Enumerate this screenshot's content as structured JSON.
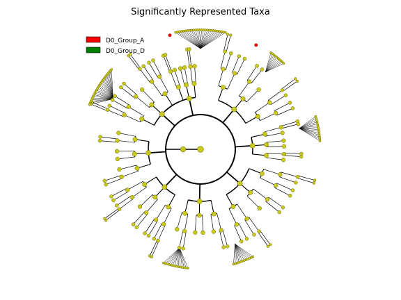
{
  "figure": {
    "title": "Significantly Represented Taxa"
  },
  "legend": {
    "items": [
      {
        "label": "D0_Group_A",
        "color": "#ff0000"
      },
      {
        "label": "D0_Group_D",
        "color": "#008000"
      }
    ]
  },
  "colors": {
    "node_fill": "#c8c81e",
    "node_stroke": "#6e6e00",
    "edge": "#000000",
    "highlight_node": "#ff0000"
  },
  "tree": {
    "type": "cladogram",
    "layout": "circular"
  }
}
